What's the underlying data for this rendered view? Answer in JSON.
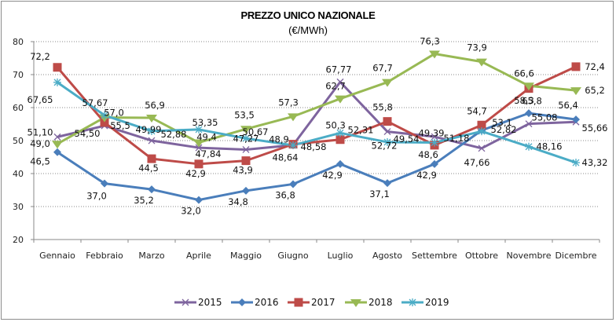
{
  "chart_data": {
    "type": "line",
    "title": "PREZZO UNICO NAZIONALE",
    "subtitle": "(€/MWh)",
    "xlabel": "",
    "ylabel": "",
    "ylim": [
      20,
      80
    ],
    "yticks": [
      "20",
      "30",
      "40",
      "50",
      "60",
      "70",
      "80"
    ],
    "ytick_values": [
      20,
      30,
      40,
      50,
      60,
      70,
      80
    ],
    "grid": "horizontal dotted",
    "legend_position": "bottom-center",
    "categories": [
      "Gennaio",
      "Febbraio",
      "Marzo",
      "Aprile",
      "Maggio",
      "Giugno",
      "Luglio",
      "Agosto",
      "Settembre",
      "Ottobre",
      "Novembre",
      "Dicembre"
    ],
    "series": [
      {
        "name": "2015",
        "color": "#7e649e",
        "marker": "x",
        "values": [
          51.1,
          54.5,
          49.99,
          47.84,
          47.27,
          48.64,
          67.77,
          52.72,
          51.18,
          47.66,
          55.08,
          55.66
        ],
        "labels": [
          "51,10",
          "54,50",
          "49,99",
          "47,84",
          "47,27",
          "48,64",
          "67,77",
          "52,72",
          "51,18",
          "47,66",
          "55,08",
          "55,66"
        ]
      },
      {
        "name": "2016",
        "color": "#4a7ebb",
        "marker": "diamond",
        "values": [
          46.5,
          37.0,
          35.2,
          32.0,
          34.8,
          36.8,
          42.9,
          37.1,
          42.9,
          53.1,
          58.3,
          56.4
        ],
        "labels": [
          "46,5",
          "37,0",
          "35,2",
          "32,0",
          "34,8",
          "36,8",
          "42,9",
          "37,1",
          "42,9",
          "53,1",
          "58,3",
          "56,4"
        ]
      },
      {
        "name": "2017",
        "color": "#be4b48",
        "marker": "square",
        "values": [
          72.2,
          55.5,
          44.5,
          42.9,
          43.9,
          48.9,
          50.3,
          55.8,
          48.6,
          54.7,
          65.8,
          72.4
        ],
        "labels": [
          "72,2",
          "55,5",
          "44,5",
          "42,9",
          "43,9",
          "48,9",
          "50,3",
          "55,8",
          "48,6",
          "54,7",
          "65,8",
          "72,4"
        ]
      },
      {
        "name": "2018",
        "color": "#98b954",
        "marker": "triangle",
        "values": [
          49.0,
          57.0,
          56.9,
          49.4,
          53.5,
          57.3,
          62.7,
          67.7,
          76.3,
          73.9,
          66.6,
          65.2
        ],
        "labels": [
          "49,0",
          "57,0",
          "56,9",
          "49,4",
          "53,5",
          "57,3",
          "62,7",
          "67,7",
          "76,3",
          "73,9",
          "66,6",
          "65,2"
        ]
      },
      {
        "name": "2019",
        "color": "#4bacc6",
        "marker": "star",
        "values": [
          67.65,
          57.67,
          52.88,
          53.35,
          50.67,
          48.58,
          52.31,
          49.54,
          49.39,
          52.82,
          48.16,
          43.32
        ],
        "labels": [
          "67,65",
          "57,67",
          "52,88",
          "53,35",
          "50,67",
          "48,58",
          "52,31",
          "49,54",
          "49,39",
          "52,82",
          "48,16",
          "43,32"
        ]
      }
    ]
  }
}
